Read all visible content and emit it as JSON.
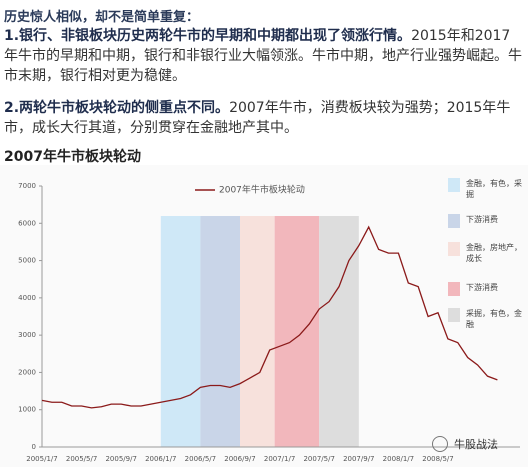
{
  "heading": "历史惊人相似，却不是简单重复：",
  "points": [
    {
      "lead": "1.银行、非银板块历史两轮牛市的早期和中期都出现了领涨行情。",
      "text": "2015年和2017年牛市的早期和中期，银行和非银行业大幅领涨。牛市中期，地产行业强势崛起。牛市末期，银行相对更为稳健。"
    },
    {
      "lead": "2.两轮牛市板块轮动的侧重点不同。",
      "text": "2007年牛市，消费板块较为强势；2015年牛市，成长大行其道，分别贯穿在金融地产其中。"
    }
  ],
  "chart_data": {
    "type": "line",
    "title": "2007年牛市板块轮动",
    "categories": [
      "2005/1/7",
      null,
      null,
      null,
      "2005/5/7",
      null,
      null,
      null,
      "2005/9/7",
      null,
      null,
      null,
      "2006/1/7",
      null,
      null,
      null,
      "2006/5/7",
      null,
      null,
      null,
      "2006/9/7",
      null,
      null,
      null,
      "2007/1/7",
      null,
      null,
      null,
      "2007/5/7",
      null,
      null,
      null,
      "2007/9/7",
      null,
      null,
      null,
      "2008/1/7",
      null,
      null,
      null,
      "2008/5/7",
      null,
      null,
      null,
      null,
      null,
      null
    ],
    "series": [
      {
        "name": "2007年牛市板块轮动",
        "color": "#8b1a1a",
        "values": [
          1250,
          1200,
          1200,
          1100,
          1100,
          1050,
          1080,
          1150,
          1150,
          1100,
          1100,
          1150,
          1200,
          1250,
          1300,
          1400,
          1600,
          1650,
          1650,
          1600,
          1700,
          1850,
          2000,
          2600,
          2700,
          2800,
          3000,
          3300,
          3700,
          3900,
          4300,
          5000,
          5400,
          5900,
          5300,
          5200,
          5200,
          4400,
          4300,
          3500,
          3600,
          2900,
          2800,
          2400,
          2200,
          1900,
          1800
        ]
      }
    ],
    "ylim": [
      0,
      7000
    ],
    "yticks": [
      0,
      1000,
      2000,
      3000,
      4000,
      5000,
      6000,
      7000
    ],
    "bands": [
      {
        "label": "金融，有色，采掘",
        "color": "#cfe8f7",
        "from": 12,
        "to": 16
      },
      {
        "label": "下游消费",
        "color": "#c9d5e8",
        "from": 16,
        "to": 20
      },
      {
        "label": "金融，房地产，成长",
        "color": "#f7e1dc",
        "from": 20,
        "to": 23.5
      },
      {
        "label": "下游消费",
        "color": "#f2b7bc",
        "from": 23.5,
        "to": 28
      },
      {
        "label": "采掘，有色，金融",
        "color": "#dddddd",
        "from": 28,
        "to": 32
      }
    ]
  },
  "watermark": "牛股战法"
}
